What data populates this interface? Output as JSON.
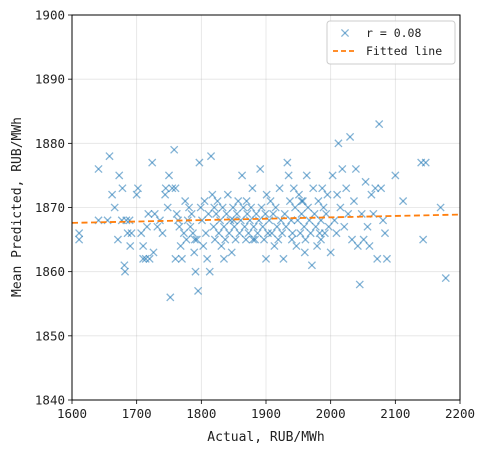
{
  "chart_data": {
    "type": "scatter",
    "xlabel": "Actual, RUB/MWh",
    "ylabel": "Mean Predicted, RUB/MWh",
    "xlim": [
      1600,
      2200
    ],
    "ylim": [
      1840,
      1900
    ],
    "xticks": [
      1600,
      1700,
      1800,
      1900,
      2000,
      2100,
      2200
    ],
    "yticks": [
      1840,
      1850,
      1860,
      1870,
      1880,
      1890,
      1900
    ],
    "grid": true,
    "legend_position": "top-right",
    "colors": {
      "points": "#1f77b4",
      "fit": "#ff7f0e"
    },
    "series": [
      {
        "name": "r = 0.08",
        "marker": "x",
        "points": [
          [
            1611,
            1866
          ],
          [
            1611,
            1865
          ],
          [
            1641,
            1876
          ],
          [
            1641,
            1868
          ],
          [
            1655,
            1868
          ],
          [
            1658,
            1878
          ],
          [
            1662,
            1872
          ],
          [
            1666,
            1870
          ],
          [
            1671,
            1865
          ],
          [
            1673,
            1875
          ],
          [
            1677,
            1868
          ],
          [
            1678,
            1873
          ],
          [
            1681,
            1861
          ],
          [
            1682,
            1860
          ],
          [
            1684,
            1868
          ],
          [
            1686,
            1866
          ],
          [
            1689,
            1868
          ],
          [
            1692,
            1866
          ],
          [
            1700,
            1872
          ],
          [
            1702,
            1873
          ],
          [
            1707,
            1866
          ],
          [
            1710,
            1864
          ],
          [
            1714,
            1862
          ],
          [
            1716,
            1867
          ],
          [
            1718,
            1869
          ],
          [
            1724,
            1877
          ],
          [
            1726,
            1863
          ],
          [
            1728,
            1869
          ],
          [
            1732,
            1867
          ],
          [
            1736,
            1868
          ],
          [
            1740,
            1866
          ],
          [
            1744,
            1872
          ],
          [
            1748,
            1870
          ],
          [
            1750,
            1875
          ],
          [
            1752,
            1856
          ],
          [
            1755,
            1873
          ],
          [
            1758,
            1879
          ],
          [
            1760,
            1873
          ],
          [
            1762,
            1869
          ],
          [
            1764,
            1868
          ],
          [
            1766,
            1867
          ],
          [
            1768,
            1864
          ],
          [
            1770,
            1862
          ],
          [
            1773,
            1866
          ],
          [
            1775,
            1871
          ],
          [
            1777,
            1865
          ],
          [
            1779,
            1868
          ],
          [
            1781,
            1870
          ],
          [
            1783,
            1867
          ],
          [
            1785,
            1869
          ],
          [
            1787,
            1866
          ],
          [
            1789,
            1863
          ],
          [
            1791,
            1860
          ],
          [
            1793,
            1865
          ],
          [
            1795,
            1857
          ],
          [
            1797,
            1877
          ],
          [
            1799,
            1870
          ],
          [
            1801,
            1868
          ],
          [
            1803,
            1864
          ],
          [
            1805,
            1871
          ],
          [
            1807,
            1866
          ],
          [
            1809,
            1862
          ],
          [
            1811,
            1869
          ],
          [
            1813,
            1860
          ],
          [
            1815,
            1878
          ],
          [
            1817,
            1872
          ],
          [
            1819,
            1867
          ],
          [
            1821,
            1865
          ],
          [
            1823,
            1869
          ],
          [
            1825,
            1871
          ],
          [
            1827,
            1866
          ],
          [
            1829,
            1868
          ],
          [
            1831,
            1864
          ],
          [
            1833,
            1870
          ],
          [
            1835,
            1867
          ],
          [
            1837,
            1865
          ],
          [
            1839,
            1869
          ],
          [
            1841,
            1872
          ],
          [
            1843,
            1866
          ],
          [
            1845,
            1868
          ],
          [
            1847,
            1863
          ],
          [
            1849,
            1870
          ],
          [
            1851,
            1867
          ],
          [
            1853,
            1865
          ],
          [
            1855,
            1869
          ],
          [
            1857,
            1871
          ],
          [
            1859,
            1866
          ],
          [
            1861,
            1868
          ],
          [
            1863,
            1875
          ],
          [
            1865,
            1870
          ],
          [
            1867,
            1867
          ],
          [
            1869,
            1865
          ],
          [
            1871,
            1869
          ],
          [
            1873,
            1866
          ],
          [
            1875,
            1868
          ],
          [
            1877,
            1870
          ],
          [
            1879,
            1873
          ],
          [
            1881,
            1867
          ],
          [
            1883,
            1865
          ],
          [
            1885,
            1869
          ],
          [
            1887,
            1866
          ],
          [
            1889,
            1868
          ],
          [
            1891,
            1876
          ],
          [
            1893,
            1870
          ],
          [
            1895,
            1867
          ],
          [
            1897,
            1865
          ],
          [
            1899,
            1869
          ],
          [
            1901,
            1872
          ],
          [
            1903,
            1866
          ],
          [
            1905,
            1868
          ],
          [
            1907,
            1871
          ],
          [
            1909,
            1866
          ],
          [
            1911,
            1869
          ],
          [
            1913,
            1864
          ],
          [
            1915,
            1870
          ],
          [
            1917,
            1867
          ],
          [
            1919,
            1865
          ],
          [
            1921,
            1873
          ],
          [
            1923,
            1868
          ],
          [
            1925,
            1866
          ],
          [
            1927,
            1862
          ],
          [
            1929,
            1869
          ],
          [
            1931,
            1867
          ],
          [
            1933,
            1877
          ],
          [
            1935,
            1875
          ],
          [
            1937,
            1871
          ],
          [
            1939,
            1868
          ],
          [
            1941,
            1866
          ],
          [
            1943,
            1873
          ],
          [
            1945,
            1870
          ],
          [
            1947,
            1864
          ],
          [
            1949,
            1868
          ],
          [
            1951,
            1872
          ],
          [
            1953,
            1866
          ],
          [
            1955,
            1869
          ],
          [
            1957,
            1871
          ],
          [
            1959,
            1867
          ],
          [
            1961,
            1865
          ],
          [
            1963,
            1875
          ],
          [
            1965,
            1870
          ],
          [
            1967,
            1868
          ],
          [
            1969,
            1866
          ],
          [
            1971,
            1861
          ],
          [
            1973,
            1873
          ],
          [
            1975,
            1869
          ],
          [
            1977,
            1867
          ],
          [
            1979,
            1864
          ],
          [
            1981,
            1871
          ],
          [
            1983,
            1866
          ],
          [
            1985,
            1868
          ],
          [
            1987,
            1873
          ],
          [
            1989,
            1870
          ],
          [
            1991,
            1866
          ],
          [
            1993,
            1869
          ],
          [
            1995,
            1872
          ],
          [
            1997,
            1867
          ],
          [
            2000,
            1863
          ],
          [
            2003,
            1875
          ],
          [
            2006,
            1868
          ],
          [
            2009,
            1866
          ],
          [
            2012,
            1880
          ],
          [
            2015,
            1870
          ],
          [
            2018,
            1876
          ],
          [
            2021,
            1867
          ],
          [
            2024,
            1873
          ],
          [
            2027,
            1869
          ],
          [
            2030,
            1881
          ],
          [
            2033,
            1865
          ],
          [
            2036,
            1871
          ],
          [
            2039,
            1876
          ],
          [
            2042,
            1864
          ],
          [
            2045,
            1858
          ],
          [
            2048,
            1869
          ],
          [
            2051,
            1865
          ],
          [
            2054,
            1874
          ],
          [
            2057,
            1867
          ],
          [
            2060,
            1864
          ],
          [
            2063,
            1872
          ],
          [
            2066,
            1869
          ],
          [
            2069,
            1873
          ],
          [
            2072,
            1862
          ],
          [
            2075,
            1883
          ],
          [
            2078,
            1873
          ],
          [
            2081,
            1868
          ],
          [
            2084,
            1866
          ],
          [
            2087,
            1862
          ],
          [
            2100,
            1875
          ],
          [
            2112,
            1871
          ],
          [
            2140,
            1877
          ],
          [
            2143,
            1865
          ],
          [
            2147,
            1877
          ],
          [
            2170,
            1870
          ],
          [
            2178,
            1859
          ],
          [
            1960,
            1863
          ],
          [
            1880,
            1865
          ],
          [
            1850,
            1868
          ],
          [
            1790,
            1865
          ],
          [
            1760,
            1862
          ],
          [
            1720,
            1862
          ],
          [
            1835,
            1862
          ],
          [
            1955,
            1871
          ],
          [
            1900,
            1862
          ],
          [
            1870,
            1871
          ],
          [
            1820,
            1870
          ],
          [
            1745,
            1873
          ],
          [
            1985,
            1865
          ],
          [
            2010,
            1872
          ],
          [
            1690,
            1864
          ],
          [
            1710,
            1862
          ],
          [
            1940,
            1865
          ]
        ]
      },
      {
        "name": "Fitted line",
        "style": "dashed",
        "line": [
          [
            1600,
            1867.6
          ],
          [
            2200,
            1868.9
          ]
        ]
      }
    ]
  }
}
